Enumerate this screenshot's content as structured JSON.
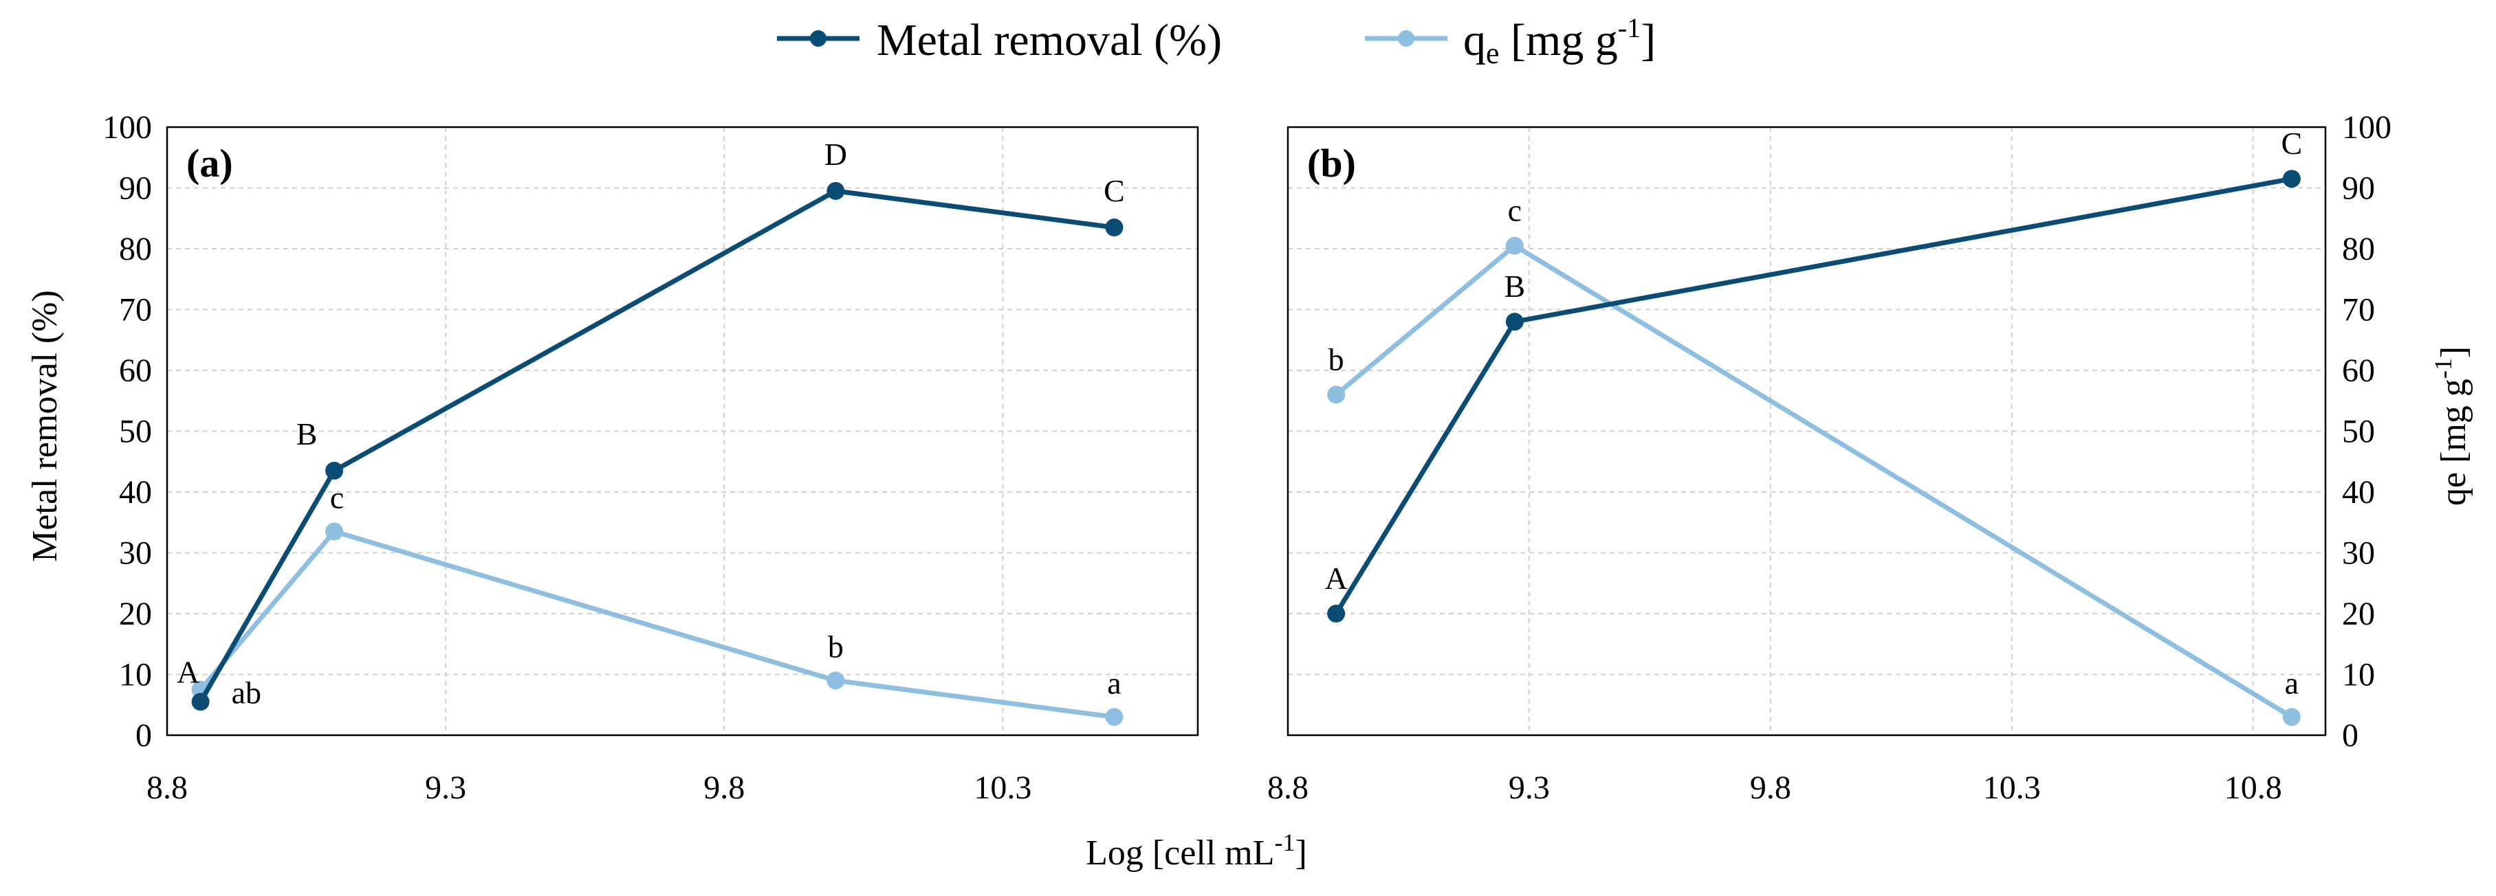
{
  "legend": {
    "metal_label": "Metal removal (%)",
    "qe_label_main": "q",
    "qe_label_sub": "e",
    "qe_label_rest": " [mg g",
    "qe_label_sup": "-1",
    "qe_label_end": "]"
  },
  "colors": {
    "metal": "#0a4c74",
    "qe": "#8fbfe0"
  },
  "x_title": {
    "main": "Log [cell mL",
    "sup": "-1",
    "end": "]"
  },
  "y_left_title": "Metal removal (%)",
  "y_right_title": {
    "main": "qe [mg g",
    "sup": "-1",
    "end": "]"
  },
  "chart_data": [
    {
      "type": "line",
      "panel_label": "(a)",
      "xlim": [
        8.8,
        10.65
      ],
      "xticks": [
        8.8,
        9.3,
        9.8,
        10.3
      ],
      "xtick_labels": [
        "8.8",
        "9.3",
        "9.8",
        "10.3"
      ],
      "ylim": [
        0,
        100
      ],
      "yticks": [
        0,
        10,
        20,
        30,
        40,
        50,
        60,
        70,
        80,
        90,
        100
      ],
      "ytick_labels": [
        "0",
        "10",
        "20",
        "30",
        "40",
        "50",
        "60",
        "70",
        "80",
        "90",
        "100"
      ],
      "ylabel": "Metal removal (%)",
      "grid": true,
      "series": [
        {
          "name": "Metal removal (%)",
          "x": [
            8.86,
            9.1,
            10.0,
            10.5
          ],
          "y": [
            5.5,
            43.5,
            89.5,
            83.5
          ],
          "labels": [
            "A",
            "B",
            "D",
            "C"
          ]
        },
        {
          "name": "qe [mg g-1]",
          "x": [
            8.86,
            9.1,
            10.0,
            10.5
          ],
          "y": [
            7.5,
            33.5,
            9.0,
            3.0
          ],
          "labels": [
            "ab",
            "c",
            "b",
            "a"
          ]
        }
      ]
    },
    {
      "type": "line",
      "panel_label": "(b)",
      "xlim": [
        8.8,
        10.95
      ],
      "xticks": [
        8.8,
        9.3,
        9.8,
        10.3,
        10.8
      ],
      "xtick_labels": [
        "8.8",
        "9.3",
        "9.8",
        "10.3",
        "10.8"
      ],
      "ylim": [
        0,
        100
      ],
      "yticks": [
        0,
        10,
        20,
        30,
        40,
        50,
        60,
        70,
        80,
        90,
        100
      ],
      "ytick_labels": [
        "0",
        "10",
        "20",
        "30",
        "40",
        "50",
        "60",
        "70",
        "80",
        "90",
        "100"
      ],
      "ylabel": "qe [mg g-1]",
      "grid": true,
      "series": [
        {
          "name": "Metal removal (%)",
          "x": [
            8.9,
            9.27,
            10.88
          ],
          "y": [
            20.0,
            68.0,
            91.5
          ],
          "labels": [
            "A",
            "B",
            "C"
          ]
        },
        {
          "name": "qe [mg g-1]",
          "x": [
            8.9,
            9.27,
            10.88
          ],
          "y": [
            56.0,
            80.5,
            3.0
          ],
          "labels": [
            "b",
            "c",
            "a"
          ]
        }
      ]
    }
  ]
}
